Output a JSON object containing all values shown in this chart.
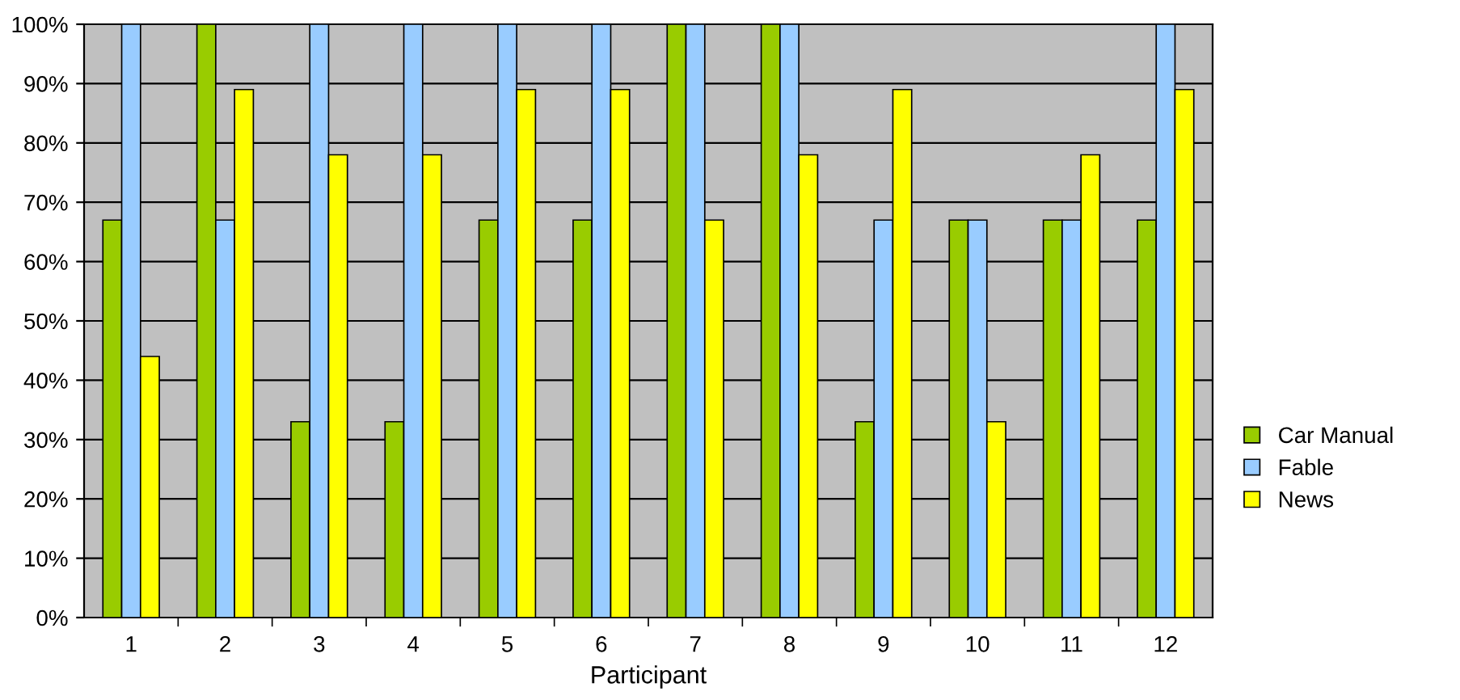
{
  "chart_data": {
    "type": "bar",
    "xlabel": "Participant",
    "categories": [
      "1",
      "2",
      "3",
      "4",
      "5",
      "6",
      "7",
      "8",
      "9",
      "10",
      "11",
      "12"
    ],
    "series": [
      {
        "name": "Car Manual",
        "color": "#99cc00",
        "values": [
          67,
          100,
          33,
          33,
          67,
          67,
          100,
          100,
          33,
          67,
          67,
          67
        ]
      },
      {
        "name": "Fable",
        "color": "#99ccff",
        "values": [
          100,
          67,
          100,
          100,
          100,
          100,
          100,
          100,
          67,
          67,
          67,
          100
        ]
      },
      {
        "name": "News",
        "color": "#ffff00",
        "values": [
          44,
          89,
          78,
          78,
          89,
          89,
          67,
          78,
          89,
          33,
          78,
          89
        ]
      }
    ],
    "ylim": [
      0,
      100
    ],
    "yticks": [
      {
        "value": 0,
        "label": "0%"
      },
      {
        "value": 10,
        "label": "10%"
      },
      {
        "value": 20,
        "label": "20%"
      },
      {
        "value": 30,
        "label": "30%"
      },
      {
        "value": 40,
        "label": "40%"
      },
      {
        "value": 50,
        "label": "50%"
      },
      {
        "value": 60,
        "label": "60%"
      },
      {
        "value": 70,
        "label": "70%"
      },
      {
        "value": 80,
        "label": "80%"
      },
      {
        "value": 90,
        "label": "90%"
      },
      {
        "value": 100,
        "label": "100%"
      }
    ],
    "grid": "y",
    "legend": "right"
  }
}
